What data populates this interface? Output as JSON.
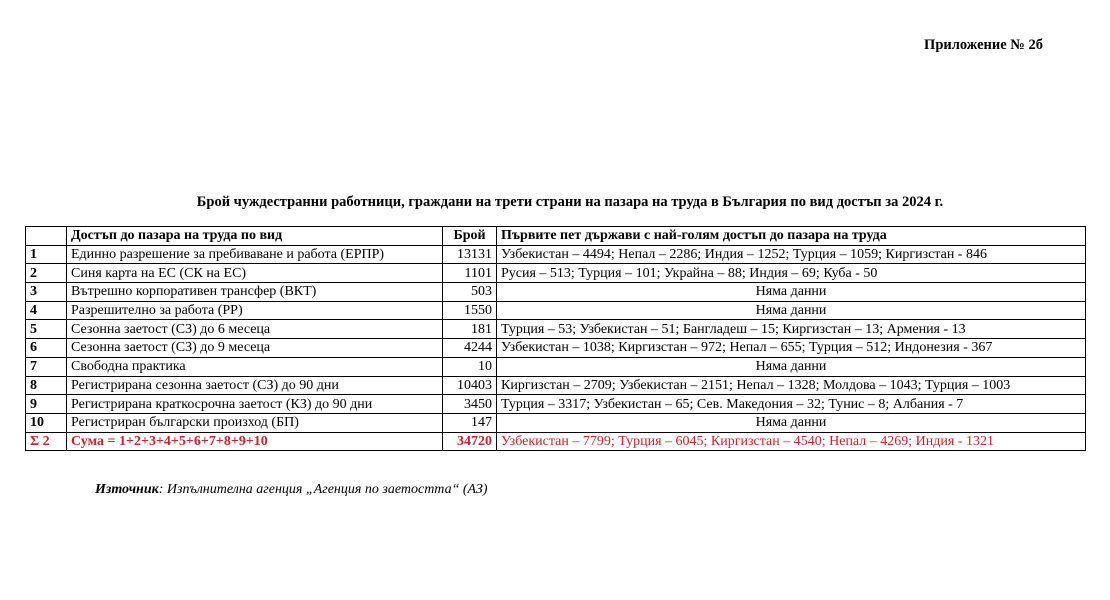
{
  "appendix": "Приложение № 2б",
  "title": "Брой чуждестранни работници, граждани на трети страни на пазара на труда в България по вид достъп за 2024 г.",
  "table": {
    "headers": [
      "",
      "Достъп до пазара на труда по вид",
      "Брой",
      "Първите пет държави с най-голям достъп до пазара на труда"
    ],
    "rows": [
      {
        "num": "1",
        "type": "Единно разрешение за пребиваване и работа (ЕРПР)",
        "count": "13131",
        "countries": "Узбекистан – 4494; Непал – 2286; Индия – 1252; Турция – 1059; Киргизстан - 846"
      },
      {
        "num": "2",
        "type": "Синя карта на ЕС (СК на ЕС)",
        "count": "1101",
        "countries": "Русия – 513; Турция – 101; Украйна – 88; Индия – 69; Куба - 50"
      },
      {
        "num": "3",
        "type": "Вътрешно корпоративен трансфер (ВКТ)",
        "count": "503",
        "countries": "Няма данни",
        "nodata": true
      },
      {
        "num": "4",
        "type": "Разрешително за работа (РР)",
        "count": "1550",
        "countries": "Няма данни",
        "nodata": true
      },
      {
        "num": "5",
        "type": "Сезонна заетост (СЗ) до 6 месеца",
        "count": "181",
        "countries": "Турция – 53; Узбекистан – 51; Бангладеш – 15; Киргизстан – 13; Армения - 13"
      },
      {
        "num": "6",
        "type": "Сезонна заетост (СЗ) до 9 месеца",
        "count": "4244",
        "countries": "Узбекистан – 1038; Киргизстан – 972; Непал – 655; Турция – 512; Индонезия - 367"
      },
      {
        "num": "7",
        "type": "Свободна практика",
        "count": "10",
        "countries": "Няма данни",
        "nodata": true
      },
      {
        "num": "8",
        "type": "Регистрирана сезонна заетост (СЗ) до 90 дни",
        "count": "10403",
        "countries": "Киргизстан – 2709; Узбекистан – 2151; Непал – 1328; Молдова – 1043; Турция – 1003"
      },
      {
        "num": "9",
        "type": "Регистрирана краткосрочна заетост (КЗ) до 90 дни",
        "count": "3450",
        "countries": "Турция – 3317; Узбекистан – 65; Сев. Македония – 32; Тунис – 8; Албания - 7"
      },
      {
        "num": "10",
        "type": "Регистриран български произход (БП)",
        "count": "147",
        "countries": "Няма данни",
        "nodata": true
      }
    ],
    "total": {
      "num": "Σ 2",
      "type": "Сума = 1+2+3+4+5+6+7+8+9+10",
      "count": "34720",
      "countries": "Узбекистан – 7799; Турция – 6045; Киргизстан – 4540; Непал – 4269; Индия - 1321"
    }
  },
  "source": {
    "label": "Източник",
    "text": ": Изпълнителна агенция „Агенция по заетостта“ (АЗ)"
  },
  "colors": {
    "total": "#d0202a"
  }
}
